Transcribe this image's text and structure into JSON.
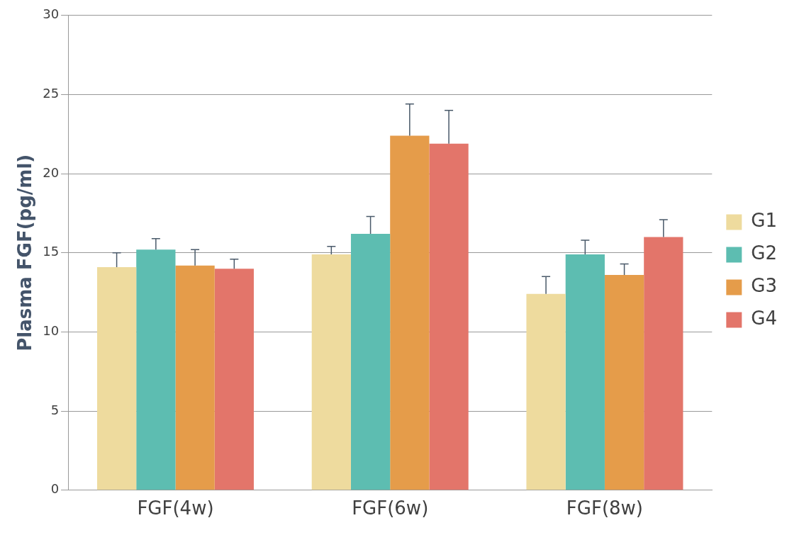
{
  "chart_data": {
    "type": "bar",
    "ylabel": "Plasma FGF(pg/ml)",
    "categories": [
      "FGF(4w)",
      "FGF(6w)",
      "FGF(8w)"
    ],
    "series": [
      {
        "name": "G1",
        "color": "#eedb9e",
        "values": [
          14.1,
          14.9,
          12.4
        ],
        "errors": [
          [
            14.1,
            15.0
          ],
          [
            14.9,
            15.4
          ],
          [
            12.4,
            13.5
          ]
        ]
      },
      {
        "name": "G2",
        "color": "#5dbdb1",
        "values": [
          15.2,
          16.2,
          14.9
        ],
        "errors": [
          [
            15.2,
            15.9
          ],
          [
            16.2,
            17.3
          ],
          [
            14.9,
            15.8
          ]
        ]
      },
      {
        "name": "G3",
        "color": "#e59c4a",
        "values": [
          14.2,
          22.4,
          13.6
        ],
        "errors": [
          [
            14.2,
            15.2
          ],
          [
            22.4,
            24.4
          ],
          [
            13.6,
            14.3
          ]
        ]
      },
      {
        "name": "G4",
        "color": "#e3756a",
        "values": [
          14.0,
          21.9,
          16.0
        ],
        "errors": [
          [
            14.0,
            14.6
          ],
          [
            21.9,
            24.0
          ],
          [
            16.0,
            17.1
          ]
        ]
      }
    ],
    "ylim": [
      0,
      30
    ],
    "yticks": [
      0,
      5,
      10,
      15,
      20,
      25,
      30
    ],
    "grid": "y",
    "legend": "right"
  }
}
